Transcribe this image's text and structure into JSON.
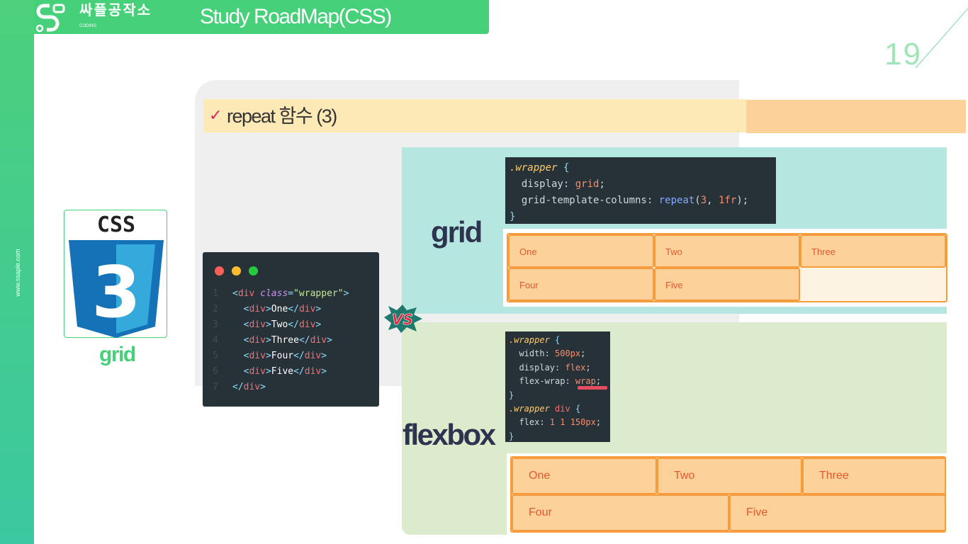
{
  "header": {
    "brand": "싸플공작소",
    "brand_sub": "CODING",
    "title": "Study RoadMap(CSS)"
  },
  "sidebar": {
    "url": "www.ssaple.com"
  },
  "page_number": "19",
  "section": {
    "check": "✓",
    "title": "repeat 함수 (3)"
  },
  "css_logo": {
    "text": "CSS",
    "number": "3",
    "label": "grid"
  },
  "html_code": {
    "lines": [
      "<div class=\"wrapper\">",
      "<div>One</div>",
      "<div>Two</div>",
      "<div>Three</div>",
      "<div>Four</div>",
      "<div>Five</div>",
      "</div>"
    ]
  },
  "vs": "VS",
  "grid": {
    "label": "grid",
    "code": [
      ".wrapper {",
      "display: grid;",
      "grid-template-columns: repeat(3, 1fr);",
      "}"
    ],
    "items": [
      "One",
      "Two",
      "Three",
      "Four",
      "Five"
    ]
  },
  "flexbox": {
    "label": "flexbox",
    "code": [
      ".wrapper {",
      "width: 500px;",
      "display: flex;",
      "flex-wrap: wrap;",
      "}",
      ".wrapper div {",
      "flex: 1 1 150px;",
      "}"
    ],
    "items": [
      "One",
      "Two",
      "Three",
      "Four",
      "Five"
    ]
  },
  "colors": {
    "brand_green": "#46d07a",
    "title_bar": "#fde9b6",
    "grid_bg": "#b6e6e0",
    "flex_bg": "#dcebcc",
    "item_fill": "#fdd29a",
    "item_border": "#f79c3c"
  }
}
